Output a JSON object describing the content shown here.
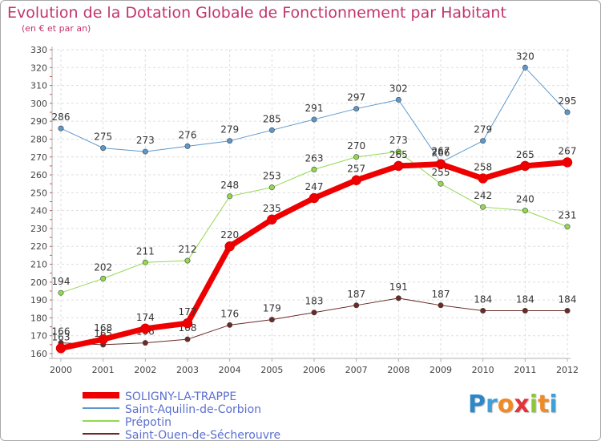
{
  "title": "Evolution de la Dotation Globale de Fonctionnement par Habitant",
  "subtitle": "(en € et par an)",
  "logo": {
    "letters": [
      "P",
      "r",
      "o",
      "x",
      "i",
      "t",
      "i"
    ],
    "colors": [
      "#2e86c7",
      "#3f9fd7",
      "#f08a24",
      "#e2323a",
      "#8cc63f",
      "#f08a24",
      "#3f9fd7"
    ]
  },
  "chart_data": {
    "type": "line",
    "title": "Evolution de la Dotation Globale de Fonctionnement par Habitant",
    "subtitle": "(en € et par an)",
    "xlabel": "",
    "ylabel": "",
    "x": [
      "2000",
      "2001",
      "2002",
      "2003",
      "2004",
      "2005",
      "2006",
      "2007",
      "2008",
      "2009",
      "2010",
      "2011",
      "2012"
    ],
    "ylim": [
      160,
      330
    ],
    "yticks": [
      160,
      170,
      180,
      190,
      200,
      210,
      220,
      230,
      240,
      250,
      260,
      270,
      280,
      290,
      300,
      310,
      320,
      330
    ],
    "grid": true,
    "legend_position": "bottom-left",
    "series": [
      {
        "name": "Saint-Ouen-de-Sécherouvre",
        "color": "#6b2a26",
        "width": 1,
        "values": [
          166,
          165,
          166,
          168,
          176,
          179,
          183,
          187,
          191,
          187,
          184,
          184,
          184
        ],
        "labels": [
          "166",
          "165",
          "166",
          "168",
          "176",
          "179",
          "183",
          "187",
          "191",
          "187",
          "184",
          "184",
          "184"
        ]
      },
      {
        "name": "Prépotin",
        "color": "#92d94f",
        "width": 1,
        "values": [
          194,
          202,
          211,
          212,
          248,
          253,
          263,
          270,
          273,
          255,
          242,
          240,
          231
        ],
        "labels": [
          "194",
          "202",
          "211",
          "212",
          "248",
          "253",
          "263",
          "270",
          "273",
          "255",
          "242",
          "240",
          "231"
        ]
      },
      {
        "name": "Saint-Aquilin-de-Corbion",
        "color": "#5d98cc",
        "width": 1,
        "values": [
          286,
          275,
          273,
          276,
          279,
          285,
          291,
          297,
          302,
          267,
          279,
          320,
          295
        ],
        "labels": [
          "286",
          "275",
          "273",
          "276",
          "279",
          "285",
          "291",
          "297",
          "302",
          "267",
          "279",
          "320",
          "295"
        ]
      },
      {
        "name": "SOLIGNY-LA-TRAPPE",
        "color": "#ee0000",
        "width": 7,
        "values": [
          163,
          168,
          174,
          177,
          220,
          235,
          247,
          257,
          265,
          266,
          258,
          265,
          267
        ],
        "labels": [
          "163",
          "168",
          "174",
          "177",
          "220",
          "235",
          "247",
          "257",
          "265",
          "266",
          "258",
          "265",
          "267"
        ]
      }
    ],
    "legend_order": [
      "SOLIGNY-LA-TRAPPE",
      "Saint-Aquilin-de-Corbion",
      "Prépotin",
      "Saint-Ouen-de-Sécherouvre"
    ]
  }
}
